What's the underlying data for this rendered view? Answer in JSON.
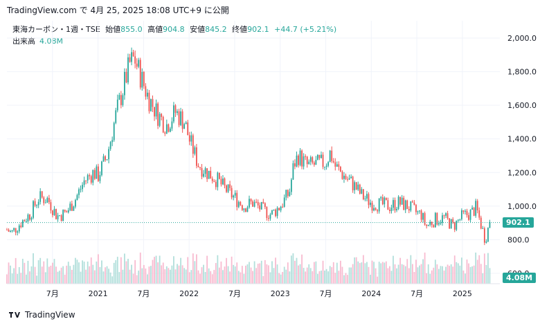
{
  "header": {
    "text": "TradingView.com で 4月 25, 2025 18:08 UTC+9 に公開"
  },
  "legend": {
    "symbol": "東海カーボン・1週・TSE",
    "open_label": "始値",
    "open": "855.0",
    "high_label": "高値",
    "high": "904.8",
    "low_label": "安値",
    "low": "845.2",
    "close_label": "終値",
    "close": "902.1",
    "change": "+44.7 (+5.21%)",
    "volume_label": "出来高",
    "volume": "4.08M"
  },
  "badges": {
    "price": "902.1",
    "volume": "4.08M"
  },
  "footer": {
    "brand": "TradingView"
  },
  "colors": {
    "up": "#26a69a",
    "down": "#ef5350",
    "vol_up": "#b2dfdb",
    "vol_down": "#f8bbd0"
  },
  "chart_data": {
    "type": "candlestick",
    "y_ticks": [
      "2,000.0",
      "1,800.0",
      "1,600.0",
      "1,400.0",
      "1,200.0",
      "1,000.0",
      "800.0",
      "600.0"
    ],
    "x_ticks": [
      "7月",
      "2021",
      "7月",
      "2022",
      "7月",
      "2023",
      "7月",
      "2024",
      "7月",
      "2025"
    ],
    "ylim": [
      600,
      2000
    ],
    "last_close": 902.1,
    "path_points": [
      [
        2020.0,
        860
      ],
      [
        2020.05,
        840
      ],
      [
        2020.15,
        900
      ],
      [
        2020.25,
        950
      ],
      [
        2020.35,
        1050
      ],
      [
        2020.45,
        1040
      ],
      [
        2020.55,
        940
      ],
      [
        2020.65,
        960
      ],
      [
        2020.75,
        1040
      ],
      [
        2020.85,
        1150
      ],
      [
        2020.95,
        1200
      ],
      [
        2021.0,
        1180
      ],
      [
        2021.1,
        1300
      ],
      [
        2021.2,
        1550
      ],
      [
        2021.3,
        1750
      ],
      [
        2021.35,
        1850
      ],
      [
        2021.4,
        1880
      ],
      [
        2021.45,
        1800
      ],
      [
        2021.55,
        1650
      ],
      [
        2021.65,
        1550
      ],
      [
        2021.75,
        1480
      ],
      [
        2021.85,
        1560
      ],
      [
        2021.95,
        1500
      ],
      [
        2022.0,
        1400
      ],
      [
        2022.1,
        1250
      ],
      [
        2022.2,
        1200
      ],
      [
        2022.3,
        1160
      ],
      [
        2022.4,
        1100
      ],
      [
        2022.5,
        1050
      ],
      [
        2022.6,
        1000
      ],
      [
        2022.7,
        1020
      ],
      [
        2022.8,
        980
      ],
      [
        2022.9,
        950
      ],
      [
        2023.0,
        1000
      ],
      [
        2023.1,
        1080
      ],
      [
        2023.15,
        1250
      ],
      [
        2023.2,
        1300
      ],
      [
        2023.3,
        1240
      ],
      [
        2023.4,
        1250
      ],
      [
        2023.5,
        1260
      ],
      [
        2023.55,
        1320
      ],
      [
        2023.6,
        1240
      ],
      [
        2023.7,
        1180
      ],
      [
        2023.8,
        1130
      ],
      [
        2023.9,
        1060
      ],
      [
        2024.0,
        1020
      ],
      [
        2024.1,
        1010
      ],
      [
        2024.2,
        1000
      ],
      [
        2024.3,
        1020
      ],
      [
        2024.4,
        1000
      ],
      [
        2024.5,
        960
      ],
      [
        2024.55,
        950
      ],
      [
        2024.6,
        880
      ],
      [
        2024.7,
        920
      ],
      [
        2024.8,
        930
      ],
      [
        2024.9,
        880
      ],
      [
        2025.0,
        940
      ],
      [
        2025.1,
        960
      ],
      [
        2025.15,
        990
      ],
      [
        2025.2,
        900
      ],
      [
        2025.25,
        800
      ],
      [
        2025.3,
        902
      ]
    ],
    "x_range": [
      2020.0,
      2025.32
    ]
  }
}
